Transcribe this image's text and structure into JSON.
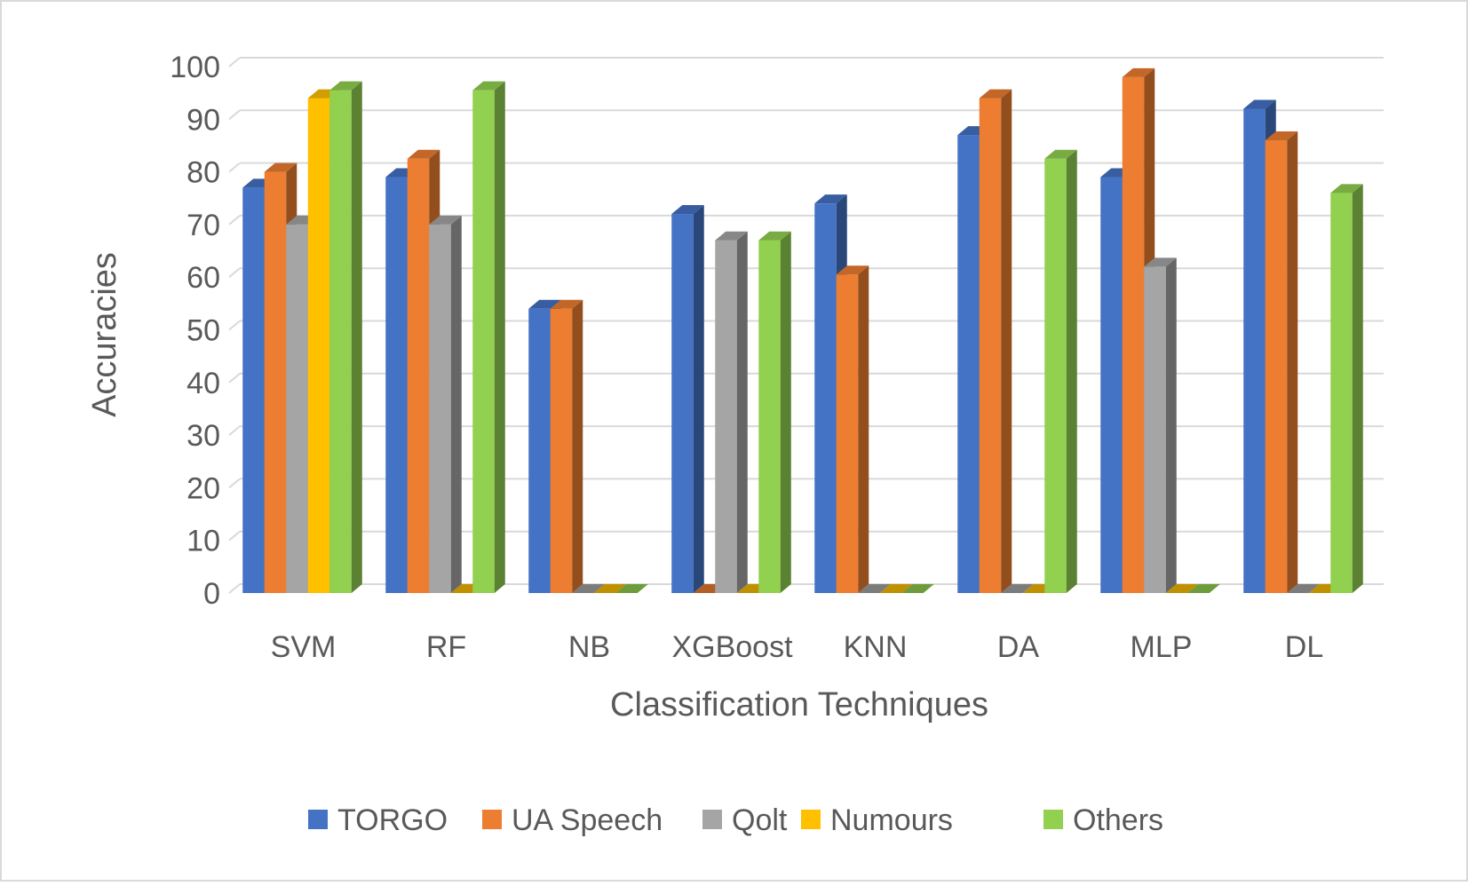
{
  "chart_data": {
    "type": "bar",
    "style": "3d-clustered-column",
    "title": "",
    "xlabel": "Classification Techniques",
    "ylabel": "Accuracies",
    "ylim": [
      0,
      100
    ],
    "yticks": [
      0,
      10,
      20,
      30,
      40,
      50,
      60,
      70,
      80,
      90,
      100
    ],
    "grid": true,
    "legend_position": "bottom",
    "categories": [
      "SVM",
      "RF",
      "NB",
      "XGBoost",
      "KNN",
      "DA",
      "MLP",
      "DL"
    ],
    "series": [
      {
        "name": "TORGO",
        "color": "#4472C4",
        "values": [
          77,
          79,
          54,
          72,
          74,
          87,
          79,
          92
        ]
      },
      {
        "name": "UA Speech",
        "color": "#ED7D31",
        "values": [
          80,
          82.5,
          54,
          0,
          60.5,
          94,
          98,
          86
        ]
      },
      {
        "name": "Qolt",
        "color": "#A5A5A5",
        "values": [
          70,
          70,
          0,
          67,
          0,
          0,
          62,
          0
        ]
      },
      {
        "name": "Numours",
        "color": "#FFC000",
        "values": [
          94,
          0,
          0,
          0,
          0,
          0,
          0,
          0
        ]
      },
      {
        "name": "Others",
        "color": "#92D050",
        "values": [
          95.5,
          95.5,
          0,
          67,
          0,
          82.5,
          0,
          76
        ]
      }
    ]
  }
}
